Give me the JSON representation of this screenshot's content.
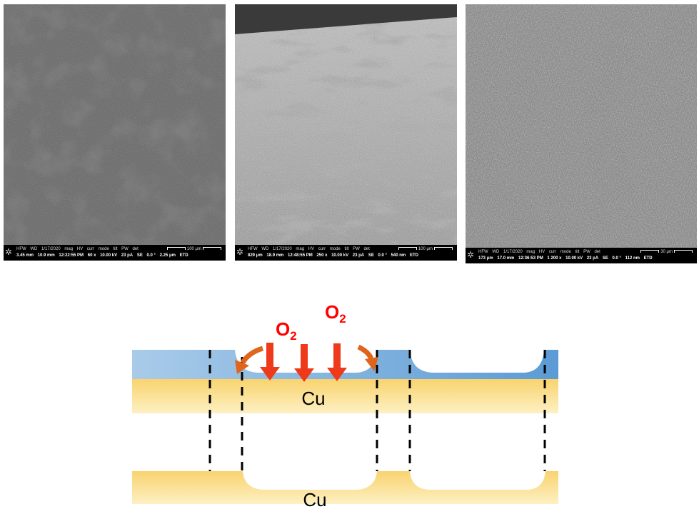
{
  "panels": [
    {
      "hfw_label": "HFW",
      "wd_label": "WD",
      "date": "1/17/2020",
      "mag_label": "mag",
      "hv_label": "HV",
      "curr_label": "curr",
      "mode_label": "mode",
      "tilt_label": "tilt",
      "pw_label": "PW",
      "det_label": "det",
      "hfw": "3.45 mm",
      "wd": "10.9 mm",
      "time": "12:22:55 PM",
      "mag": "60 x",
      "hv": "10.00 kV",
      "curr": "23 pA",
      "mode": "SE",
      "tilt": "0.0 °",
      "pw": "2.25 μm",
      "det": "ETD",
      "scale": "100 μm"
    },
    {
      "hfw_label": "HFW",
      "wd_label": "WD",
      "date": "1/17/2020",
      "mag_label": "mag",
      "hv_label": "HV",
      "curr_label": "curr",
      "mode_label": "mode",
      "tilt_label": "tilt",
      "pw_label": "PW",
      "det_label": "det",
      "hfw": "829 μm",
      "wd": "18.9 mm",
      "time": "12:48:55 PM",
      "mag": "250 x",
      "hv": "10.00 kV",
      "curr": "23 pA",
      "mode": "SE",
      "tilt": "0.0 °",
      "pw": "540 nm",
      "det": "ETD",
      "scale": "100 μm"
    },
    {
      "hfw_label": "HFW",
      "wd_label": "WD",
      "date": "1/17/2020",
      "mag_label": "mag",
      "hv_label": "HV",
      "curr_label": "curr",
      "mode_label": "mode",
      "tilt_label": "tilt",
      "pw_label": "PW",
      "det_label": "det",
      "hfw": "173 μm",
      "wd": "17.0 mm",
      "time": "12:36:53 PM",
      "mag": "1 200 x",
      "hv": "10.00 kV",
      "curr": "23 pA",
      "mode": "SE",
      "tilt": "0.0 °",
      "pw": "112 nm",
      "det": "ETD",
      "scale": "30 μm"
    }
  ],
  "diagram": {
    "oxygen_left": "O",
    "oxygen_left_sub": "2",
    "oxygen_right": "O",
    "oxygen_right_sub": "2",
    "top_layer_label": "Cu",
    "bottom_layer_label": "Cu",
    "colors": {
      "oxide_blue_light": "#a9cbe9",
      "oxide_blue": "#5b9bd5",
      "copper_light": "#fdf0c4",
      "copper": "#f9d36e",
      "oxygen_text": "#ff0000",
      "arrow_red": "#ee3a1a",
      "arrow_orange": "#e0651c"
    }
  }
}
